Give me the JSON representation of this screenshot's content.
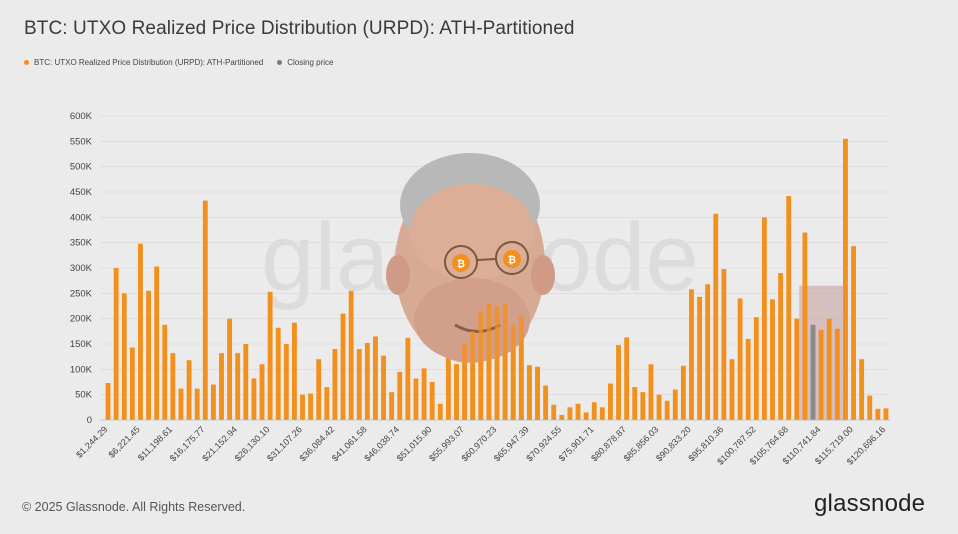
{
  "header": {
    "title": "BTC: UTXO Realized Price Distribution (URPD): ATH-Partitioned"
  },
  "legend": [
    {
      "label": "BTC: UTXO Realized Price Distribution (URPD): ATH-Partitioned",
      "color": "#f2901e"
    },
    {
      "label": "Closing price",
      "color": "#7a7a7a"
    }
  ],
  "watermark": "glassnode",
  "footer": {
    "copyright": "© 2025 Glassnode. All Rights Reserved.",
    "brand": "glassnode"
  },
  "colors": {
    "bar": "#f2901e",
    "closing": "#8a8a8a",
    "highlight": "#c49a9a",
    "grid": "#d6d6d6"
  },
  "chart_data": {
    "type": "bar",
    "title": "BTC: UTXO Realized Price Distribution (URPD): ATH-Partitioned",
    "ylim": [
      0,
      600000
    ],
    "yticks": [
      0,
      50000,
      100000,
      150000,
      200000,
      250000,
      300000,
      350000,
      400000,
      450000,
      500000,
      550000,
      600000
    ],
    "ytick_labels": [
      "0",
      "50K",
      "100K",
      "150K",
      "200K",
      "250K",
      "300K",
      "350K",
      "400K",
      "450K",
      "500K",
      "550K",
      "600K"
    ],
    "xtick_labels": [
      "$1,244.29",
      "$6,221.45",
      "$11,198.61",
      "$16,175.77",
      "$21,152.94",
      "$26,130.10",
      "$31,107.26",
      "$36,084.42",
      "$41,061.58",
      "$46,038.74",
      "$51,015.90",
      "$55,993.07",
      "$60,970.23",
      "$65,947.39",
      "$70,924.55",
      "$75,901.71",
      "$80,878.87",
      "$85,856.03",
      "$90,833.20",
      "$95,810.36",
      "$100,787.52",
      "$105,764.68",
      "$110,741.84",
      "$115,719.00",
      "$120,696.16"
    ],
    "bin_start": 1244.29,
    "bin_width": 995.43,
    "values": [
      73000,
      300000,
      250000,
      143000,
      348000,
      255000,
      303000,
      188000,
      132000,
      62000,
      118000,
      62000,
      433000,
      70000,
      132000,
      200000,
      132000,
      150000,
      82000,
      110000,
      253000,
      182000,
      150000,
      192000,
      50000,
      52000,
      120000,
      65000,
      140000,
      210000,
      255000,
      140000,
      152000,
      165000,
      127000,
      55000,
      95000,
      162000,
      82000,
      102000,
      75000,
      32000,
      123000,
      110000,
      150000,
      175000,
      215000,
      230000,
      225000,
      230000,
      188000,
      205000,
      108000,
      105000,
      68000,
      30000,
      10000,
      25000,
      32000,
      15000,
      35000,
      25000,
      72000,
      148000,
      163000,
      65000,
      55000,
      110000,
      50000,
      38000,
      60000,
      107000,
      258000,
      243000,
      268000,
      407000,
      298000,
      120000,
      240000,
      160000,
      203000,
      400000,
      238000,
      290000,
      442000,
      200000,
      370000,
      188000,
      178000,
      200000,
      180000,
      555000,
      343000,
      120000,
      48000,
      22000,
      23000
    ],
    "closing_price_bin": 87,
    "highlight_range_bins": [
      86,
      91
    ],
    "highlight_level": 265000
  }
}
